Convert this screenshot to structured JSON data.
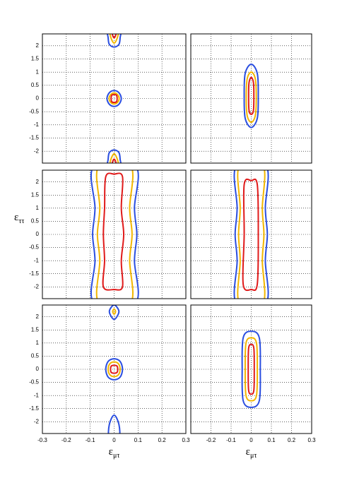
{
  "chart_data": [
    {
      "type": "contour",
      "xlim": [
        -0.3,
        0.3
      ],
      "ylim": [
        -2.45,
        2.45
      ],
      "xticks": [
        -0.3,
        -0.2,
        -0.1,
        0,
        0.1,
        0.2,
        0.3
      ],
      "yticks": [
        -2,
        -1.5,
        -1,
        -0.5,
        0,
        0.5,
        1,
        1.5,
        2
      ],
      "grid": true,
      "series": [
        {
          "color": "#2a4ee0",
          "contours": [
            {
              "x": [
                0.03,
                0.02,
                0,
                -0.02,
                -0.03,
                -0.02,
                0,
                0.02
              ],
              "y": [
                0,
                0.22,
                0.3,
                0.22,
                0,
                -0.22,
                -0.3,
                -0.22
              ]
            },
            {
              "x": [
                0.025,
                0.02,
                0,
                -0.02,
                -0.025,
                -0.025,
                0.025
              ],
              "y": [
                2.3,
                2.05,
                1.95,
                2.05,
                2.3,
                2.6,
                2.6
              ]
            },
            {
              "x": [
                0.025,
                0.02,
                0,
                -0.02,
                -0.025,
                -0.025,
                0.025
              ],
              "y": [
                -2.3,
                -2.05,
                -1.95,
                -2.05,
                -2.3,
                -2.6,
                -2.6
              ]
            }
          ]
        },
        {
          "color": "#f2b600",
          "contours": [
            {
              "x": [
                0.021,
                0.014,
                0,
                -0.014,
                -0.021,
                -0.014,
                0,
                0.014
              ],
              "y": [
                0,
                0.15,
                0.21,
                0.15,
                0,
                -0.15,
                -0.21,
                -0.15
              ]
            },
            {
              "x": [
                0.015,
                0,
                -0.015,
                -0.015,
                0.015
              ],
              "y": [
                2.35,
                2.1,
                2.35,
                2.6,
                2.6
              ]
            },
            {
              "x": [
                0.015,
                0,
                -0.015,
                -0.015,
                0.015
              ],
              "y": [
                -2.35,
                -2.1,
                -2.35,
                -2.6,
                -2.6
              ]
            }
          ]
        },
        {
          "color": "#e01a1a",
          "contours": [
            {
              "x": [
                0.01,
                -0.01,
                -0.01,
                0.01
              ],
              "y": [
                0.12,
                0.12,
                -0.12,
                -0.12
              ]
            },
            {
              "x": [
                0.008,
                0,
                -0.008,
                -0.008,
                0.008
              ],
              "y": [
                2.45,
                2.3,
                2.45,
                2.6,
                2.6
              ]
            },
            {
              "x": [
                0.008,
                0,
                -0.008,
                -0.008,
                0.008
              ],
              "y": [
                -2.45,
                -2.3,
                -2.45,
                -2.6,
                -2.6
              ]
            }
          ]
        }
      ]
    },
    {
      "type": "contour",
      "xlim": [
        -0.3,
        0.3
      ],
      "ylim": [
        -2.45,
        2.45
      ],
      "xticks": [
        -0.2,
        -0.1,
        0,
        0.1,
        0.2,
        0.3
      ],
      "yticks": [
        -2,
        -1.5,
        -1,
        -0.5,
        0,
        0.5,
        1,
        1.5,
        2
      ],
      "grid": true,
      "series": [
        {
          "color": "#2a4ee0",
          "contours": [
            {
              "x": [
                0.035,
                0.03,
                0,
                -0.03,
                -0.035,
                -0.03,
                0,
                0.03
              ],
              "y": [
                0.1,
                0.95,
                1.3,
                0.95,
                0.1,
                -0.75,
                -1.1,
                -0.75
              ]
            }
          ]
        },
        {
          "color": "#f2b600",
          "contours": [
            {
              "x": [
                0.025,
                0.02,
                0,
                -0.02,
                -0.025,
                -0.02,
                0,
                0.02
              ],
              "y": [
                0.05,
                0.75,
                1.0,
                0.75,
                0.05,
                -0.65,
                -0.9,
                -0.65
              ]
            }
          ]
        },
        {
          "color": "#e01a1a",
          "contours": [
            {
              "x": [
                0.013,
                0.011,
                0,
                -0.011,
                -0.013,
                -0.011,
                0,
                0.011
              ],
              "y": [
                0.1,
                0.6,
                0.8,
                0.6,
                0.1,
                -0.45,
                -0.6,
                -0.45
              ]
            }
          ]
        }
      ]
    },
    {
      "type": "contour",
      "xlim": [
        -0.3,
        0.3
      ],
      "ylim": [
        -2.45,
        2.45
      ],
      "ylabel": "ε",
      "ylabel_sub": "ττ",
      "xticks": [
        -0.3,
        -0.2,
        -0.1,
        0,
        0.1,
        0.2,
        0.3
      ],
      "yticks": [
        -2,
        -1.5,
        -1,
        -0.5,
        0,
        0.5,
        1,
        1.5,
        2
      ],
      "grid": true,
      "series": [
        {
          "color": "#2a4ee0",
          "contours": [
            {
              "x": [
                0.09,
                0.085,
                0.095,
                0.085,
                0.09,
                -0.085,
                -0.08,
                -0.09,
                -0.08,
                -0.085
              ],
              "y": [
                2.6,
                1.0,
                0,
                -1.0,
                -2.6,
                -2.6,
                -1.0,
                0,
                1.0,
                2.6
              ]
            }
          ]
        },
        {
          "color": "#f2b600",
          "contours": [
            {
              "x": [
                0.07,
                0.065,
                0.075,
                0.065,
                0.07,
                -0.065,
                -0.06,
                -0.07,
                -0.06,
                -0.065
              ],
              "y": [
                2.6,
                1.0,
                0,
                -1.0,
                -2.6,
                -2.6,
                -1.0,
                0,
                1.0,
                2.6
              ]
            }
          ]
        },
        {
          "color": "#e01a1a",
          "contours": [
            {
              "x": [
                0.035,
                0.03,
                0.04,
                0.03,
                0.035,
                0,
                -0.045,
                -0.04,
                -0.045,
                -0.04,
                -0.035,
                0
              ],
              "y": [
                2.2,
                1.0,
                0,
                -1.0,
                -2.0,
                -2.1,
                -2.0,
                -1.0,
                0,
                1.0,
                2.2,
                2.3
              ]
            }
          ]
        }
      ]
    },
    {
      "type": "contour",
      "xlim": [
        -0.3,
        0.3
      ],
      "ylim": [
        -2.45,
        2.45
      ],
      "xticks": [
        -0.2,
        -0.1,
        0,
        0.1,
        0.2,
        0.3
      ],
      "yticks": [
        -2,
        -1.5,
        -1,
        -0.5,
        0,
        0.5,
        1,
        1.5,
        2
      ],
      "grid": true,
      "series": [
        {
          "color": "#2a4ee0",
          "contours": [
            {
              "x": [
                0.075,
                0.07,
                0.08,
                0.07,
                0.075,
                -0.075,
                -0.07,
                -0.08,
                -0.07,
                -0.075
              ],
              "y": [
                2.6,
                1.0,
                0,
                -1.0,
                -2.6,
                -2.6,
                -1.0,
                0,
                1.0,
                2.6
              ]
            }
          ]
        },
        {
          "color": "#f2b600",
          "contours": [
            {
              "x": [
                0.06,
                0.055,
                0.063,
                0.055,
                0.06,
                -0.06,
                -0.055,
                -0.063,
                -0.055,
                -0.06
              ],
              "y": [
                2.6,
                1.0,
                0,
                -1.0,
                -2.6,
                -2.6,
                -1.0,
                0,
                1.0,
                2.6
              ]
            }
          ]
        },
        {
          "color": "#e01a1a",
          "contours": [
            {
              "x": [
                0.03,
                0.035,
                0.03,
                0,
                -0.04,
                -0.035,
                -0.035,
                0
              ],
              "y": [
                1.9,
                0,
                -1.9,
                -2.1,
                -1.9,
                0,
                1.9,
                2.05
              ]
            }
          ]
        }
      ]
    },
    {
      "type": "contour",
      "xlim": [
        -0.3,
        0.3
      ],
      "ylim": [
        -2.45,
        2.45
      ],
      "xlabel": "ε",
      "xlabel_sub": "μτ",
      "xticks": [
        -0.3,
        -0.2,
        -0.1,
        0,
        0.1,
        0.2,
        0.3
      ],
      "yticks": [
        -2,
        -1.5,
        -1,
        -0.5,
        0,
        0.5,
        1,
        1.5,
        2
      ],
      "grid": true,
      "series": [
        {
          "color": "#2a4ee0",
          "contours": [
            {
              "x": [
                0.035,
                0.025,
                0,
                -0.025,
                -0.035,
                -0.025,
                0,
                0.025
              ],
              "y": [
                0,
                0.3,
                0.4,
                0.3,
                0,
                -0.3,
                -0.4,
                -0.3
              ]
            },
            {
              "x": [
                0.02,
                0,
                -0.02,
                0
              ],
              "y": [
                2.2,
                2.45,
                2.2,
                1.9
              ]
            },
            {
              "x": [
                0.02,
                0,
                -0.02,
                -0.02,
                0.02
              ],
              "y": [
                -2.1,
                -1.75,
                -2.1,
                -2.6,
                -2.6
              ]
            }
          ]
        },
        {
          "color": "#f2b600",
          "contours": [
            {
              "x": [
                0.025,
                0.018,
                0,
                -0.018,
                -0.025,
                -0.018,
                0,
                0.018
              ],
              "y": [
                0,
                0.21,
                0.28,
                0.21,
                0,
                -0.21,
                -0.28,
                -0.21
              ]
            },
            {
              "x": [
                0.006,
                0,
                -0.006,
                0
              ],
              "y": [
                2.2,
                2.3,
                2.2,
                2.1
              ]
            }
          ]
        },
        {
          "color": "#e01a1a",
          "contours": [
            {
              "x": [
                0.012,
                -0.012,
                -0.012,
                0.012
              ],
              "y": [
                0.12,
                0.12,
                -0.12,
                -0.12
              ]
            }
          ]
        }
      ]
    },
    {
      "type": "contour",
      "xlim": [
        -0.3,
        0.3
      ],
      "ylim": [
        -2.45,
        2.45
      ],
      "xlabel": "ε",
      "xlabel_sub": "μτ",
      "xticks": [
        -0.2,
        -0.1,
        0,
        0.1,
        0.2,
        0.3
      ],
      "yticks": [
        -2,
        -1.5,
        -1,
        -0.5,
        0,
        0.5,
        1,
        1.5,
        2
      ],
      "grid": true,
      "series": [
        {
          "color": "#2a4ee0",
          "contours": [
            {
              "x": [
                0.045,
                0.04,
                0,
                -0.04,
                -0.045,
                -0.04,
                0,
                0.04
              ],
              "y": [
                0,
                1.2,
                1.45,
                1.2,
                0,
                -1.2,
                -1.45,
                -1.2
              ]
            }
          ]
        },
        {
          "color": "#f2b600",
          "contours": [
            {
              "x": [
                0.03,
                0.026,
                0,
                -0.026,
                -0.03,
                -0.026,
                0,
                0.026
              ],
              "y": [
                0,
                1.0,
                1.2,
                1.0,
                0,
                -1.0,
                -1.2,
                -1.0
              ]
            }
          ]
        },
        {
          "color": "#e01a1a",
          "contours": [
            {
              "x": [
                0.015,
                0.013,
                0,
                -0.013,
                -0.015,
                -0.013,
                0,
                0.013
              ],
              "y": [
                0,
                0.8,
                0.95,
                0.8,
                0,
                -0.8,
                -0.95,
                -0.8
              ]
            }
          ]
        }
      ]
    }
  ]
}
